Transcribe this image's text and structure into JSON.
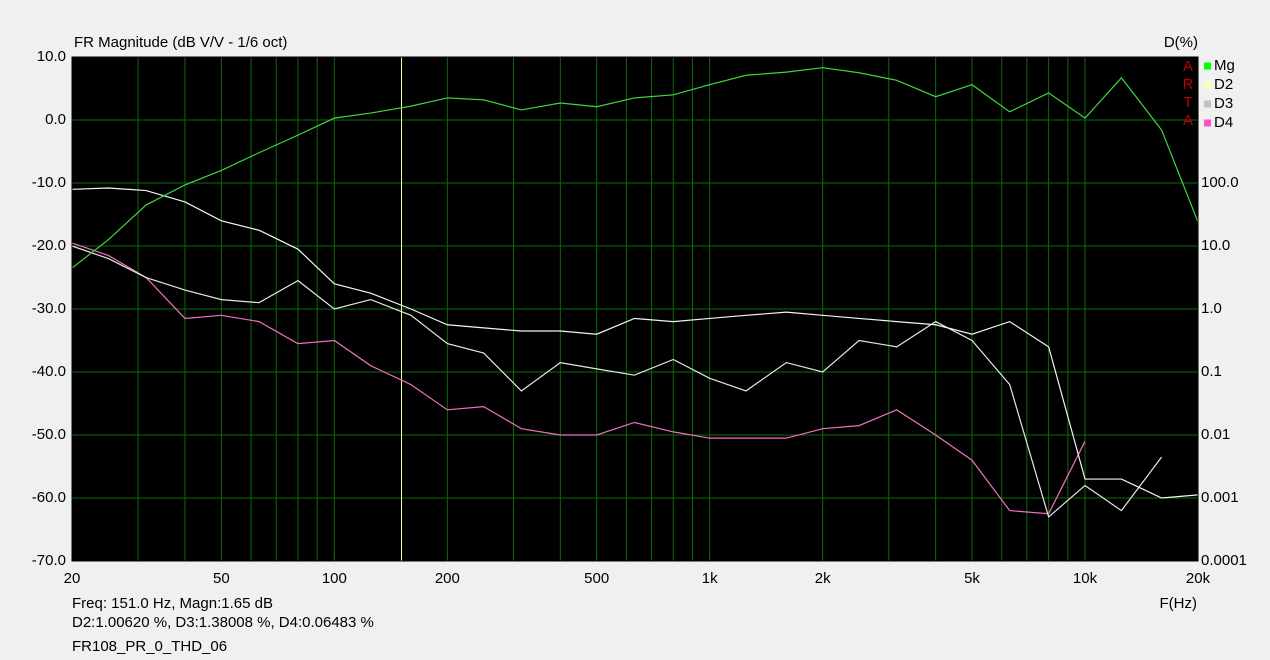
{
  "chart_data": {
    "type": "line",
    "title": "FR Magnitude (dB V/V - 1/6 oct)",
    "y2_label": "D(%)",
    "x_label": "F(Hz)",
    "watermark": [
      "A",
      "R",
      "T",
      "A"
    ],
    "xlog": true,
    "y2log": true,
    "grid": true,
    "legend": "top-right",
    "cursor_x": 151,
    "readout": [
      "Freq: 151.0 Hz, Magn:1.65 dB",
      "D2:1.00620 %, D3:1.38008 %, D4:0.06483 %"
    ],
    "file_name": "FR108_PR_0_THD_06",
    "xlim": [
      20,
      20000
    ],
    "xticks": [
      20,
      50,
      100,
      200,
      500,
      {
        "value": 1000,
        "label": "1k"
      },
      {
        "value": 2000,
        "label": "2k"
      },
      {
        "value": 5000,
        "label": "5k"
      },
      {
        "value": 10000,
        "label": "10k"
      },
      {
        "value": 20000,
        "label": "20k"
      }
    ],
    "xgrid": [
      30,
      40,
      50,
      60,
      70,
      80,
      90,
      100,
      200,
      300,
      400,
      500,
      600,
      700,
      800,
      900,
      1000,
      2000,
      3000,
      4000,
      5000,
      6000,
      7000,
      8000,
      9000,
      10000
    ],
    "ylim": [
      -70,
      10
    ],
    "yticks": [
      {
        "value": -70,
        "label": "-70.0"
      },
      {
        "value": -60,
        "label": "-60.0"
      },
      {
        "value": -50,
        "label": "-50.0"
      },
      {
        "value": -40,
        "label": "-40.0"
      },
      {
        "value": -30,
        "label": "-30.0"
      },
      {
        "value": -20,
        "label": "-20.0"
      },
      {
        "value": -10,
        "label": "-10.0"
      },
      {
        "value": 0,
        "label": "0.0"
      },
      {
        "value": 10,
        "label": "10.0"
      }
    ],
    "y2lim": [
      0.0001,
      10000
    ],
    "y2ticks": [
      0.0001,
      0.001,
      0.01,
      0.1,
      {
        "value": 1,
        "label": "1.0"
      },
      {
        "value": 10,
        "label": "10.0"
      },
      {
        "value": 100,
        "label": "100.0"
      }
    ],
    "x": [
      20,
      25,
      31.5,
      40,
      50,
      63,
      80,
      100,
      125,
      160,
      200,
      250,
      315,
      400,
      500,
      630,
      800,
      1000,
      1250,
      1600,
      2000,
      2500,
      3150,
      4000,
      5000,
      6300,
      8000,
      10000,
      12500,
      16000,
      20000
    ],
    "series": [
      {
        "name": "Mg",
        "color": "#3fd63f",
        "legend_color": "#00ff00",
        "values": [
          -23.5,
          -19,
          -13.5,
          -10.3,
          -8,
          -5.2,
          -2.4,
          0.3,
          1.1,
          2.2,
          3.5,
          3.2,
          1.6,
          2.7,
          2.1,
          3.5,
          4,
          5.6,
          7.1,
          7.6,
          8.3,
          7.5,
          6.3,
          3.7,
          5.6,
          1.3,
          4.3,
          0.3,
          6.7,
          -1.6,
          -16.2
        ]
      },
      {
        "name": "D2",
        "color": "#f4f4f0",
        "legend_color": "#ffffb0",
        "axis": "y2",
        "values": [
          79.4,
          83.2,
          75.9,
          50.1,
          25.1,
          17.8,
          8.91,
          2.51,
          1.78,
          1.0,
          0.562,
          0.501,
          0.447,
          0.447,
          0.398,
          0.708,
          0.631,
          0.708,
          0.794,
          0.891,
          0.794,
          0.708,
          0.631,
          0.562,
          0.398,
          0.631,
          0.251,
          0.002,
          0.002,
          0.001,
          0.00112
        ]
      },
      {
        "name": "D3",
        "color": "#e6e6e6",
        "legend_color": "#c0c0c0",
        "axis": "y2",
        "values": [
          10,
          6.31,
          3.16,
          2.0,
          1.41,
          1.26,
          2.82,
          1.0,
          1.41,
          0.794,
          0.282,
          0.2,
          0.0501,
          0.141,
          0.112,
          0.0891,
          0.158,
          0.0794,
          0.0501,
          0.141,
          0.1,
          0.316,
          0.251,
          0.631,
          0.316,
          0.0631,
          0.0005,
          0.00158,
          0.000631,
          0.00447,
          null
        ]
      },
      {
        "name": "D4",
        "color": "#f070c0",
        "legend_color": "#ff50c8",
        "axis": "y2",
        "values": [
          11.2,
          7.08,
          3.16,
          0.708,
          0.794,
          0.631,
          0.282,
          0.316,
          0.126,
          0.0631,
          0.0251,
          0.0282,
          0.0126,
          0.01,
          0.01,
          0.0158,
          0.0112,
          0.00891,
          0.00891,
          0.00891,
          0.0126,
          0.0141,
          0.0251,
          0.01,
          0.00398,
          0.000631,
          0.000562,
          0.00794,
          null,
          null,
          null
        ]
      }
    ]
  }
}
